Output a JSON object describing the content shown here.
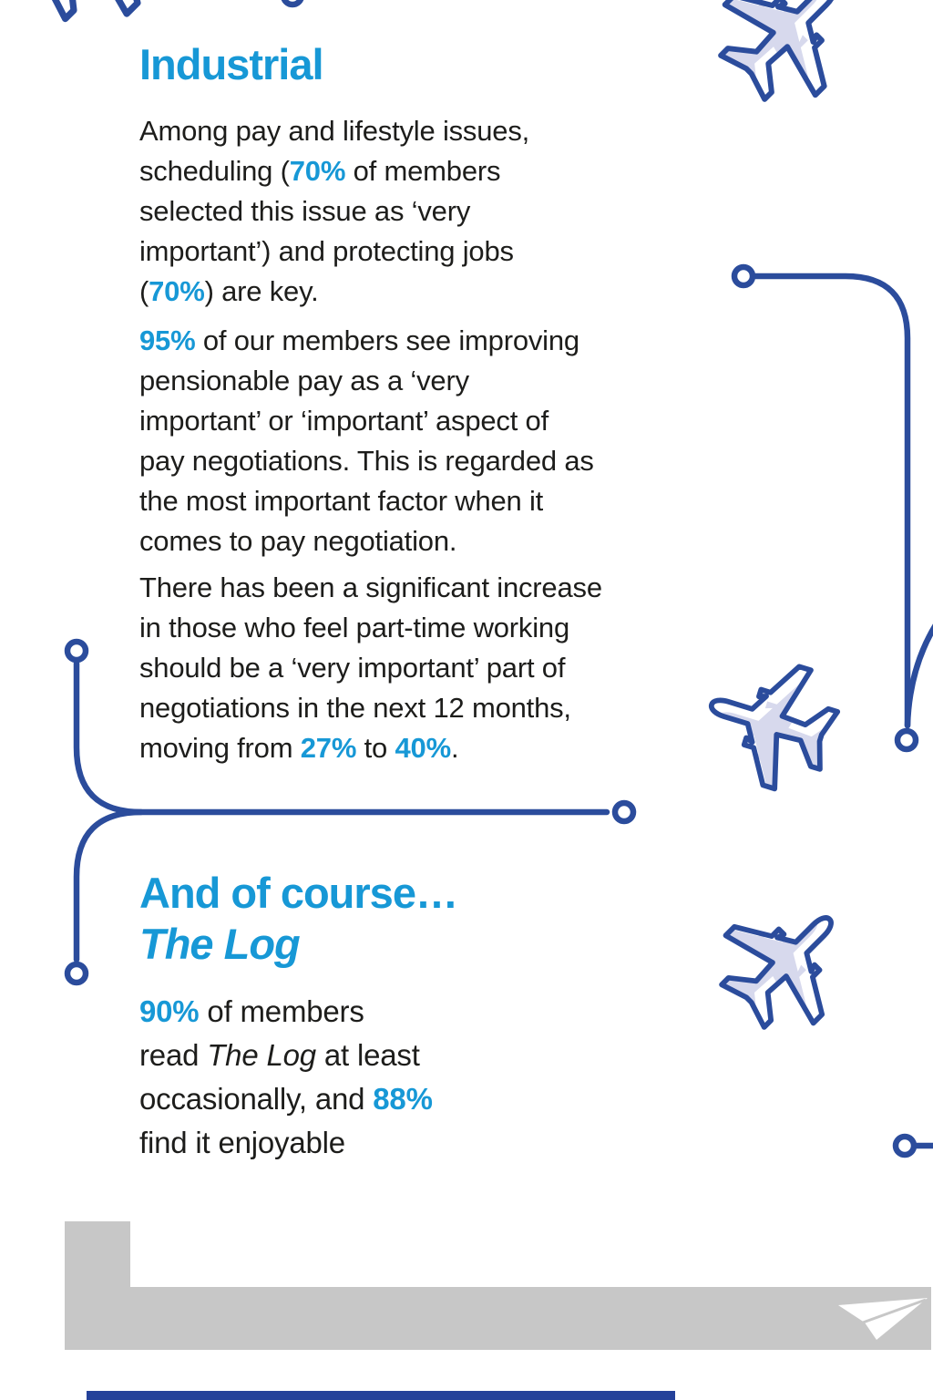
{
  "page": {
    "background_color": "#FFFFFF",
    "accent_color": "#1798D6",
    "navy_color": "#2B4C9C",
    "text_color": "#1D1D1B",
    "lavender_color": "#D7D9ED",
    "gray_color": "#C7C7C7",
    "footer_bar_color": "#24419A"
  },
  "icons": {
    "airplane": "airplane-icon",
    "paper_plane": "paper-plane-icon",
    "waypoint": "waypoint-circle",
    "flight_path": "flight-path-line"
  },
  "industrial": {
    "heading": "Industrial",
    "p1": [
      {
        "t": "Among pay and lifestyle issues,"
      },
      {
        "br": true
      },
      {
        "t": "scheduling ("
      },
      {
        "t": "70%",
        "c": "hl"
      },
      {
        "t": " of members"
      },
      {
        "br": true
      },
      {
        "t": "selected this issue as ‘very"
      },
      {
        "br": true
      },
      {
        "t": "important’) and protecting jobs"
      },
      {
        "br": true
      },
      {
        "t": "("
      },
      {
        "t": "70%",
        "c": "hl"
      },
      {
        "t": ") are key."
      }
    ],
    "p2": [
      {
        "t": "95%",
        "c": "hl"
      },
      {
        "t": " of our members see improving"
      },
      {
        "br": true
      },
      {
        "t": "pensionable pay as a ‘very"
      },
      {
        "br": true
      },
      {
        "t": "important’ or ‘important’ aspect of"
      },
      {
        "br": true
      },
      {
        "t": "pay negotiations. This is regarded as"
      },
      {
        "br": true
      },
      {
        "t": "the most important factor when it"
      },
      {
        "br": true
      },
      {
        "t": "comes to pay negotiation."
      }
    ],
    "p3": [
      {
        "t": "There has been a significant increase"
      },
      {
        "br": true
      },
      {
        "t": "in those who feel part-time working"
      },
      {
        "br": true
      },
      {
        "t": "should be a ‘very important’ part of"
      },
      {
        "br": true
      },
      {
        "t": "negotiations in the next 12 months,"
      },
      {
        "br": true
      },
      {
        "t": "moving from "
      },
      {
        "t": "27%",
        "c": "hl"
      },
      {
        "t": " to "
      },
      {
        "t": "40%",
        "c": "hl"
      },
      {
        "t": "."
      }
    ]
  },
  "log": {
    "heading": [
      {
        "t": "And of course…"
      },
      {
        "br": true
      },
      {
        "t": "The Log",
        "c": "it"
      }
    ],
    "p4": [
      {
        "t": "90%",
        "c": "hl"
      },
      {
        "t": " of members"
      },
      {
        "br": true
      },
      {
        "t": "read "
      },
      {
        "t": "The Log",
        "c": "it"
      },
      {
        "t": " at least"
      },
      {
        "br": true
      },
      {
        "t": "occasionally, and "
      },
      {
        "t": "88%",
        "c": "hl"
      },
      {
        "br": true
      },
      {
        "t": "find it enjoyable"
      }
    ]
  }
}
